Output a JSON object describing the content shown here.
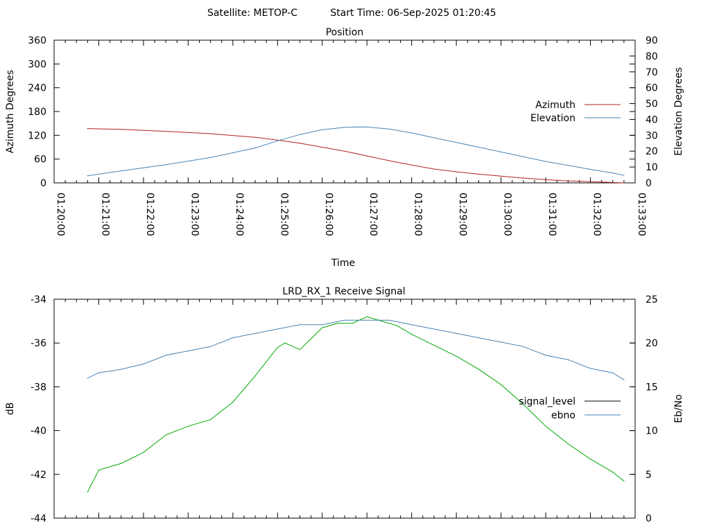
{
  "header": {
    "satellite": "Satellite: METOP-C",
    "start_time": "Start Time: 06-Sep-2025 01:20:45"
  },
  "chart_data": [
    {
      "type": "line",
      "title": "Position",
      "xlabel": "Time",
      "ylabel": "Azimuth Degrees",
      "y2label": "Elevation Degrees",
      "xlim": [
        "01:20:00",
        "01:33:00"
      ],
      "x_tick_labels": [
        "01:20:00",
        "01:21:00",
        "01:22:00",
        "01:23:00",
        "01:24:00",
        "01:25:00",
        "01:26:00",
        "01:27:00",
        "01:28:00",
        "01:29:00",
        "01:30:00",
        "01:31:00",
        "01:32:00",
        "01:33:00"
      ],
      "ylim": [
        0,
        360
      ],
      "y_ticks": [
        0,
        60,
        120,
        180,
        240,
        300,
        360
      ],
      "y2lim": [
        0,
        90
      ],
      "y2_ticks": [
        0,
        10,
        20,
        30,
        40,
        50,
        60,
        70,
        80,
        90
      ],
      "grid": false,
      "legend_position": "right",
      "series": [
        {
          "name": "Azimuth",
          "axis": "left",
          "color": "#b22222",
          "x": [
            "01:20:45",
            "01:21:30",
            "01:22:30",
            "01:23:30",
            "01:24:30",
            "01:25:00",
            "01:25:30",
            "01:26:00",
            "01:26:30",
            "01:27:00",
            "01:27:30",
            "01:28:00",
            "01:28:30",
            "01:29:00",
            "01:29:30",
            "01:30:00",
            "01:30:30",
            "01:31:00",
            "01:31:30",
            "01:32:00",
            "01:32:30",
            "01:32:45"
          ],
          "values": [
            137,
            135,
            130,
            124,
            115,
            108,
            100,
            90,
            80,
            68,
            56,
            45,
            35,
            28,
            22,
            17,
            12,
            8,
            5,
            3,
            1,
            0
          ]
        },
        {
          "name": "Elevation",
          "axis": "right",
          "color": "#4682b4",
          "x": [
            "01:20:45",
            "01:21:30",
            "01:22:30",
            "01:23:30",
            "01:24:30",
            "01:25:00",
            "01:25:30",
            "01:26:00",
            "01:26:30",
            "01:26:50",
            "01:27:00",
            "01:27:30",
            "01:28:00",
            "01:28:30",
            "01:29:00",
            "01:29:30",
            "01:30:00",
            "01:30:30",
            "01:31:00",
            "01:31:30",
            "01:32:00",
            "01:32:30",
            "01:32:45"
          ],
          "values": [
            4.5,
            7.5,
            11.5,
            16,
            22,
            26.5,
            30.5,
            33.5,
            35,
            35.3,
            35.2,
            34,
            31.5,
            28.5,
            25.5,
            22.5,
            19.5,
            16.5,
            13.5,
            11,
            8.5,
            6.2,
            4.8
          ]
        }
      ]
    },
    {
      "type": "line",
      "title": "LRD_RX_1 Receive Signal",
      "ylabel": "dB",
      "y2label": "Eb/No",
      "xlim": [
        "01:20:00",
        "01:33:00"
      ],
      "ylim": [
        -44,
        -34
      ],
      "y_ticks": [
        -44,
        -42,
        -40,
        -38,
        -36,
        -34
      ],
      "y2lim": [
        0,
        25
      ],
      "y2_ticks": [
        0,
        5,
        10,
        15,
        20,
        25
      ],
      "grid": false,
      "legend_position": "right",
      "series": [
        {
          "name": "signal_level",
          "axis": "left",
          "color": "#00aa00",
          "x": [
            "01:20:45",
            "01:21:00",
            "01:21:30",
            "01:22:00",
            "01:22:15",
            "01:22:30",
            "01:23:00",
            "01:23:30",
            "01:24:00",
            "01:24:30",
            "01:25:00",
            "01:25:10",
            "01:25:30",
            "01:26:00",
            "01:26:20",
            "01:26:40",
            "01:27:00",
            "01:27:20",
            "01:27:40",
            "01:28:00",
            "01:28:30",
            "01:29:00",
            "01:29:30",
            "01:30:00",
            "01:30:30",
            "01:31:00",
            "01:31:30",
            "01:32:00",
            "01:32:30",
            "01:32:45"
          ],
          "values": [
            -42.8,
            -41.8,
            -41.5,
            -41.0,
            -40.6,
            -40.2,
            -39.8,
            -39.5,
            -38.7,
            -37.5,
            -36.2,
            -36.0,
            -36.3,
            -35.3,
            -35.1,
            -35.1,
            -34.8,
            -35.0,
            -35.2,
            -35.6,
            -36.1,
            -36.6,
            -37.2,
            -37.9,
            -38.8,
            -39.8,
            -40.6,
            -41.3,
            -41.9,
            -42.3
          ]
        },
        {
          "name": "ebno",
          "axis": "right",
          "color": "#4682b4",
          "x": [
            "01:20:45",
            "01:21:00",
            "01:21:30",
            "01:22:00",
            "01:22:30",
            "01:23:00",
            "01:23:30",
            "01:24:00",
            "01:24:30",
            "01:25:00",
            "01:25:30",
            "01:26:00",
            "01:26:30",
            "01:27:00",
            "01:27:30",
            "01:28:00",
            "01:28:30",
            "01:29:00",
            "01:29:30",
            "01:30:00",
            "01:30:30",
            "01:31:00",
            "01:31:30",
            "01:32:00",
            "01:32:30",
            "01:32:45"
          ],
          "values": [
            16.0,
            16.6,
            17.0,
            17.6,
            18.6,
            19.1,
            19.6,
            20.6,
            21.1,
            21.6,
            22.1,
            22.1,
            22.6,
            22.6,
            22.6,
            22.1,
            21.6,
            21.1,
            20.6,
            20.1,
            19.6,
            18.6,
            18.1,
            17.1,
            16.6,
            15.8
          ]
        }
      ]
    }
  ]
}
